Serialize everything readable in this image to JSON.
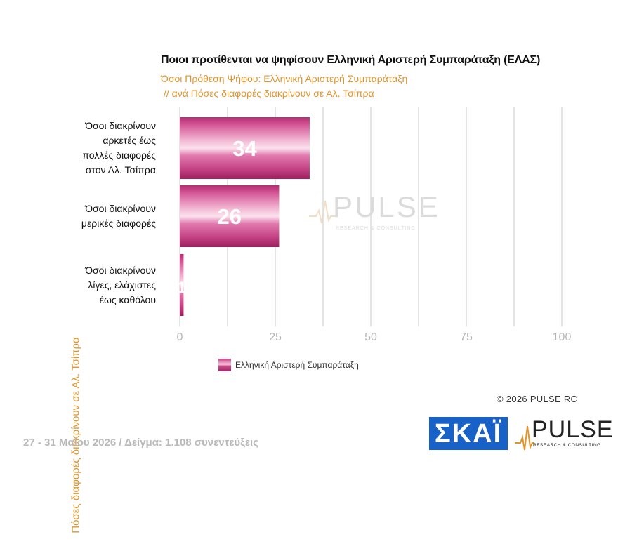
{
  "title": "Ποιοι προτίθενται να ψηφίσουν Ελληνική Αριστερή Συμπαράταξη (ΕΛΑΣ)",
  "subtitle_line1": "Όσοι Πρόθεση Ψήφου: Ελληνική Αριστερή Συμπαράταξη",
  "subtitle_line2": "// ανά Πόσες διαφορές διακρίνουν σε Αλ. Τσίπρα",
  "y_axis_title": "Πόσες διαφορές διακρίνουν σε Αλ. Τσίπρα",
  "legend_label": "Ελληνική Αριστερή Συμπαράταξη",
  "copyright": "©  2026  PULSE RC",
  "footer": "27 - 31  Μαΐου 2026  /  Δείγμα:  1.108 συνεντεύξεις",
  "logos": {
    "skai": "ΣΚΑΪ",
    "pulse": "PULSE",
    "pulse_sub": "RESEARCH & CONSULTING"
  },
  "watermark": {
    "text": "PULSE",
    "sub": "RESEARCH & CONSULTING"
  },
  "colors": {
    "bar": "#c83c83",
    "bar_highlight": "#f7c6dd",
    "subtitle": "#e0952c",
    "grid": "#dcdcdc"
  },
  "chart_data": {
    "type": "bar",
    "orientation": "horizontal",
    "categories": [
      [
        "Όσοι διακρίνουν",
        "αρκετές έως",
        "πολλές διαφορές",
        "στον Αλ. Τσίπρα"
      ],
      [
        "Όσοι διακρίνουν",
        "μερικές διαφορές"
      ],
      [
        "Όσοι διακρίνουν",
        "λίγες, ελάχιστες",
        "έως καθόλου"
      ]
    ],
    "series": [
      {
        "name": "Ελληνική Αριστερή Συμπαράταξη",
        "values": [
          34,
          26,
          1
        ],
        "data_labels": [
          "34",
          "26",
          "1"
        ]
      }
    ],
    "xlim": [
      0,
      100
    ],
    "x_ticks": [
      0,
      25,
      50,
      75,
      100
    ],
    "grid": true,
    "legend": "bottom"
  }
}
